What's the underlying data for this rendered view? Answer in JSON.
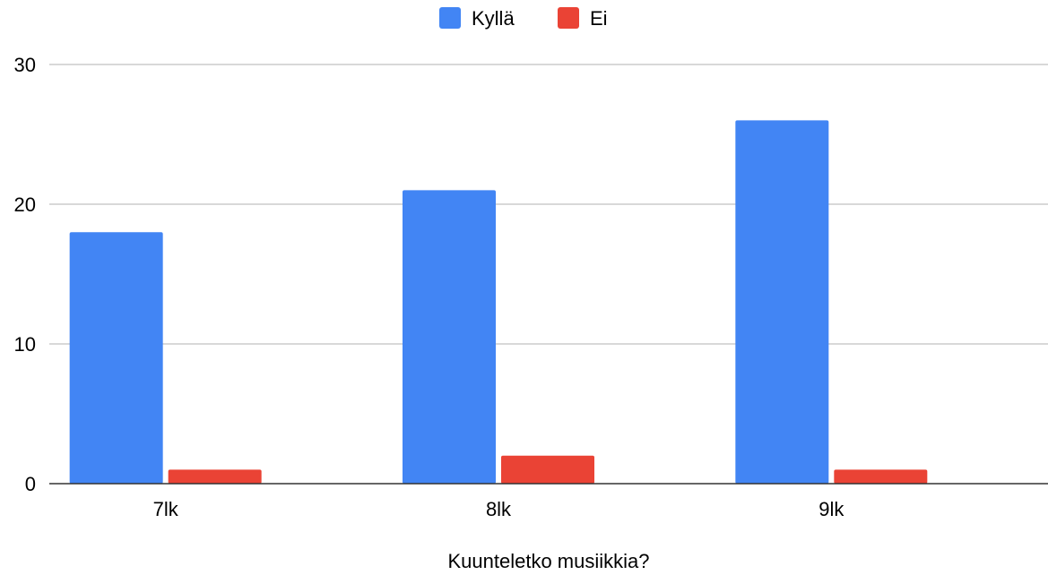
{
  "chart_data": {
    "type": "bar",
    "categories": [
      "7lk",
      "8lk",
      "9lk"
    ],
    "series": [
      {
        "name": "Kyllä",
        "values": [
          18,
          21,
          26
        ],
        "color": "#4285f4"
      },
      {
        "name": "Ei",
        "values": [
          1,
          2,
          1
        ],
        "color": "#ea4335"
      }
    ],
    "xlabel": "Kuunteletko musiikkia?",
    "ylabel": "",
    "ylim": [
      0,
      30
    ],
    "yticks": [
      0,
      10,
      20,
      30
    ],
    "grid": true,
    "legend": "top-center"
  }
}
